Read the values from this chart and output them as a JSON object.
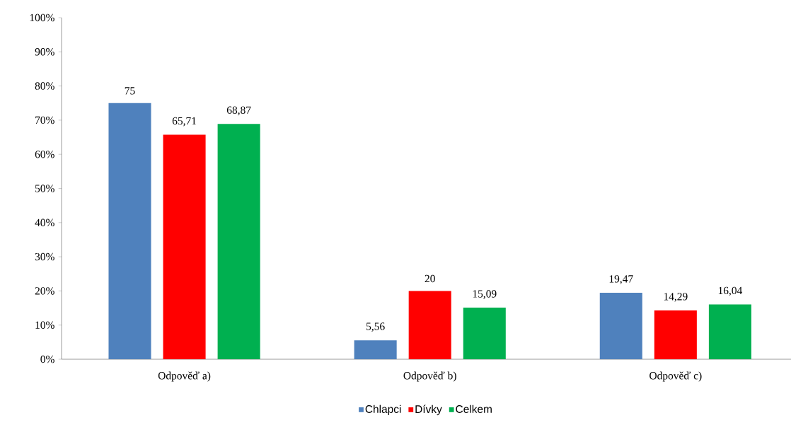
{
  "chart_data": {
    "type": "bar",
    "categories": [
      "Odpověď a)",
      "Odpověď b)",
      "Odpověď c)"
    ],
    "series": [
      {
        "name": "Chlapci",
        "color": "#4f81bd",
        "values": [
          75,
          5.56,
          19.47
        ],
        "value_labels": [
          "75",
          "5,56",
          "19,47"
        ]
      },
      {
        "name": "Dívky",
        "color": "#ff0000",
        "values": [
          65.71,
          20,
          14.29
        ],
        "value_labels": [
          "65,71",
          "20",
          "14,29"
        ]
      },
      {
        "name": "Celkem",
        "color": "#00b050",
        "values": [
          68.87,
          15.09,
          16.04
        ],
        "value_labels": [
          "68,87",
          "15,09",
          "16,04"
        ]
      }
    ],
    "ylim": [
      0,
      100
    ],
    "yticks": [
      {
        "value": 0,
        "label": "0%"
      },
      {
        "value": 10,
        "label": "10%"
      },
      {
        "value": 20,
        "label": "20%"
      },
      {
        "value": 30,
        "label": "30%"
      },
      {
        "value": 40,
        "label": "40%"
      },
      {
        "value": 50,
        "label": "50%"
      },
      {
        "value": 60,
        "label": "60%"
      },
      {
        "value": 70,
        "label": "70%"
      },
      {
        "value": 80,
        "label": "80%"
      },
      {
        "value": 90,
        "label": "90%"
      },
      {
        "value": 100,
        "label": "100%"
      }
    ],
    "grid": false,
    "legend": "bottom"
  }
}
